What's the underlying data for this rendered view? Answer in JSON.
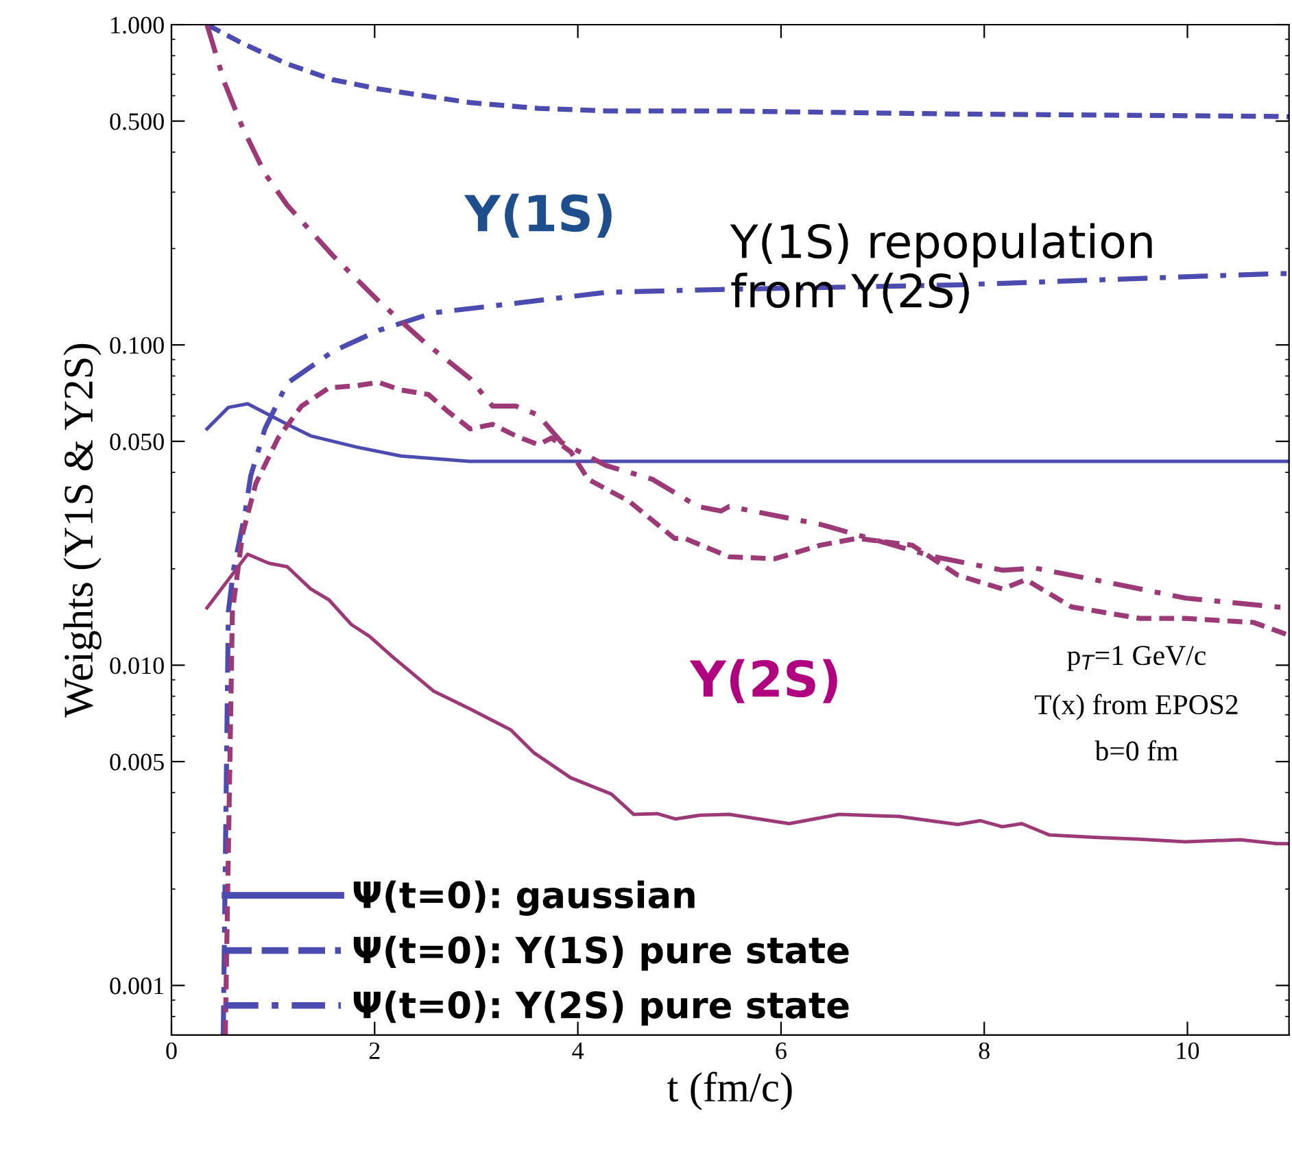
{
  "chart_data": {
    "type": "line",
    "xlabel": "t (fm/c)",
    "ylabel": "Weights (Υ1S & Υ2S)",
    "log": "y",
    "xlim": [
      0,
      11
    ],
    "ylim": [
      0.0007,
      1
    ],
    "xticks": [
      0,
      2,
      4,
      6,
      8,
      10
    ],
    "yticks": [
      {
        "value": 0.001,
        "label": "0.001"
      },
      {
        "value": 0.005,
        "label": "0.005"
      },
      {
        "value": 0.01,
        "label": "0.010"
      },
      {
        "value": 0.05,
        "label": "0.050"
      },
      {
        "value": 0.1,
        "label": "0.100"
      },
      {
        "value": 0.5,
        "label": "0.500"
      },
      {
        "value": 1,
        "label": "1.000"
      }
    ],
    "grid": false,
    "marker": "none",
    "legend": "bottom left",
    "series": [
      {
        "name": "Ψ(t=0): gaussian",
        "color": "#4b4bb0",
        "line_style": "solid",
        "x": [
          0.35,
          0.56,
          0.75,
          1.14,
          1.37,
          1.82,
          2.26,
          2.93,
          3.84,
          5.5,
          7.5,
          9.5,
          11.0
        ],
        "values": [
          0.0547,
          0.0638,
          0.0655,
          0.0565,
          0.052,
          0.048,
          0.045,
          0.0433,
          0.0433,
          0.0433,
          0.0433,
          0.0433,
          0.0433
        ]
      },
      {
        "name": "Ψ(t=0): Υ(1S) pure state",
        "color": "#4b4bb0",
        "line_style": "dashed",
        "x": [
          0.35,
          0.7,
          1.14,
          1.59,
          2.04,
          2.49,
          2.94,
          3.61,
          4.28,
          5.41,
          7.73,
          10.88,
          11.0
        ],
        "values": [
          1.0,
          0.874,
          0.754,
          0.673,
          0.63,
          0.6,
          0.571,
          0.548,
          0.538,
          0.538,
          0.526,
          0.517,
          0.516
        ]
      },
      {
        "name": "Ψ(t=0): Υ(2S) pure state",
        "color": "#4b4bb0",
        "line_style": "dashdot",
        "x": [
          0.51,
          0.56,
          0.61,
          0.72,
          0.78,
          0.92,
          1.14,
          1.59,
          2.04,
          2.58,
          3.39,
          4.28,
          5.41,
          7.74,
          10.88,
          11.0
        ],
        "values": [
          0.0007,
          0.0147,
          0.0198,
          0.0293,
          0.039,
          0.0547,
          0.076,
          0.0955,
          0.111,
          0.126,
          0.135,
          0.146,
          0.149,
          0.154,
          0.167,
          0.167
        ]
      },
      {
        "color": "#9c3a78",
        "line_style": "solid",
        "x": [
          0.35,
          0.75,
          0.96,
          1.14,
          1.37,
          1.55,
          1.77,
          1.95,
          2.18,
          2.58,
          2.94,
          3.34,
          3.57,
          3.93,
          4.33,
          4.55,
          4.78,
          4.96,
          5.2,
          5.49,
          6.08,
          6.57,
          7.16,
          7.74,
          7.96,
          8.18,
          8.37,
          8.64,
          9.08,
          9.53,
          9.98,
          10.52,
          10.88,
          11.0
        ],
        "values": [
          0.0151,
          0.0222,
          0.0208,
          0.0203,
          0.0173,
          0.016,
          0.0134,
          0.0123,
          0.0106,
          0.0083,
          0.0073,
          0.00628,
          0.00532,
          0.00445,
          0.00396,
          0.00342,
          0.00344,
          0.00331,
          0.0034,
          0.00342,
          0.0032,
          0.00342,
          0.00337,
          0.00318,
          0.00327,
          0.00313,
          0.0032,
          0.00295,
          0.0029,
          0.00286,
          0.00281,
          0.00285,
          0.00277,
          0.00277
        ]
      },
      {
        "color": "#9c3a78",
        "line_style": "dashed",
        "x": [
          0.53,
          0.6,
          0.7,
          0.83,
          1.05,
          1.28,
          1.55,
          1.82,
          2.04,
          2.26,
          2.53,
          2.71,
          2.94,
          3.16,
          3.39,
          3.61,
          3.74,
          3.93,
          4.1,
          4.51,
          4.95,
          5.05,
          5.49,
          5.94,
          6.39,
          6.75,
          7.29,
          7.74,
          8.18,
          8.41,
          8.86,
          9.53,
          9.98,
          10.65,
          10.97
        ],
        "values": [
          0.0007,
          0.0147,
          0.0257,
          0.0369,
          0.0512,
          0.0644,
          0.0734,
          0.0746,
          0.0764,
          0.0723,
          0.07,
          0.0624,
          0.0547,
          0.0565,
          0.052,
          0.0488,
          0.0512,
          0.0464,
          0.0381,
          0.0324,
          0.0249,
          0.0249,
          0.0218,
          0.0215,
          0.0237,
          0.0249,
          0.0237,
          0.0191,
          0.0173,
          0.0185,
          0.0152,
          0.014,
          0.014,
          0.0136,
          0.0125
        ]
      },
      {
        "color": "#9c3a78",
        "line_style": "dashdot",
        "x": [
          0.35,
          0.52,
          0.7,
          0.92,
          1.14,
          1.59,
          2.04,
          2.49,
          2.94,
          3.16,
          3.39,
          3.61,
          3.84,
          4.28,
          4.73,
          5.18,
          5.41,
          5.49,
          6.39,
          6.48,
          7.51,
          8.18,
          8.5,
          9.08,
          9.98,
          10.88,
          11.0
        ],
        "values": [
          1.0,
          0.662,
          0.477,
          0.343,
          0.273,
          0.19,
          0.137,
          0.102,
          0.0785,
          0.0644,
          0.0644,
          0.0604,
          0.0496,
          0.042,
          0.0381,
          0.0313,
          0.0303,
          0.0313,
          0.0275,
          0.027,
          0.0218,
          0.0198,
          0.0201,
          0.0185,
          0.0162,
          0.0152,
          0.0151
        ]
      }
    ],
    "annotations": [
      "Υ(1S)",
      "Υ(1S) repopulation\nfrom Υ(2S)",
      "Υ(2S)",
      "p$_{T}$=1 GeV/c",
      "T(x) from EPOS2",
      "b=0 fm"
    ]
  }
}
